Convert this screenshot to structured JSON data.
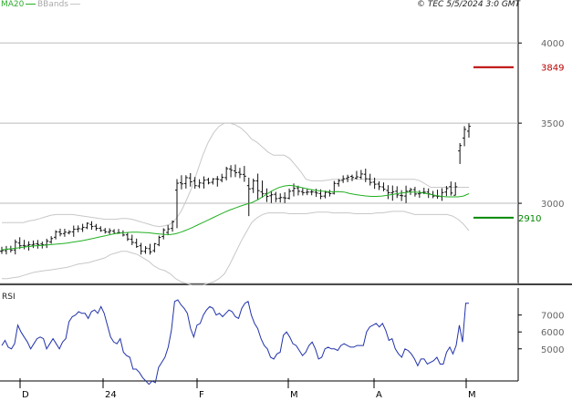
{
  "source": "© TEC 5/5/2024 3:0 GMT",
  "legend": {
    "ma": "MA20",
    "bbands": "BBands"
  },
  "rsi_title": "RSI",
  "colors": {
    "price": "#111111",
    "ma": "#22b022",
    "bands": "#c8c8c8",
    "rsi": "#2233aa",
    "resistance": "#bb0000",
    "support": "#008800",
    "grid": "#bbbbbb"
  },
  "chart_data": [
    {
      "type": "line",
      "panel": "price",
      "ylim": [
        2500,
        4200
      ],
      "yticks": [
        "3000",
        "3500",
        "4000"
      ],
      "grid": true,
      "xticks": [
        "D",
        "24",
        "F",
        "M",
        "A",
        "M"
      ],
      "levels": [
        {
          "value": 3849,
          "label": "3849",
          "color": "#bb0000"
        },
        {
          "value": 2910,
          "label": "2910",
          "color": "#008800"
        }
      ],
      "series": [
        {
          "name": "MA20",
          "values": [
            2710,
            2714,
            2718,
            2722,
            2727,
            2730,
            2734,
            2736,
            2739,
            2742,
            2745,
            2748,
            2752,
            2757,
            2762,
            2768,
            2775,
            2782,
            2790,
            2797,
            2805,
            2811,
            2815,
            2818,
            2820,
            2820,
            2818,
            2816,
            2812,
            2808,
            2806,
            2805,
            2810,
            2820,
            2833,
            2848,
            2864,
            2880,
            2896,
            2912,
            2928,
            2944,
            2958,
            2971,
            2983,
            2994,
            3004,
            3020,
            3040,
            3062,
            3082,
            3098,
            3108,
            3112,
            3108,
            3100,
            3092,
            3085,
            3080,
            3076,
            3073,
            3072,
            3073,
            3070,
            3062,
            3055,
            3050,
            3046,
            3043,
            3043,
            3045,
            3050,
            3056,
            3062,
            3066,
            3070,
            3070,
            3068,
            3062,
            3055,
            3048,
            3043,
            3040,
            3040,
            3040,
            3045,
            3060
          ]
        },
        {
          "name": "BBands upper",
          "values": [
            2880,
            2880,
            2880,
            2880,
            2880,
            2890,
            2895,
            2905,
            2915,
            2925,
            2930,
            2930,
            2930,
            2930,
            2925,
            2920,
            2915,
            2910,
            2905,
            2900,
            2900,
            2900,
            2905,
            2905,
            2900,
            2890,
            2880,
            2870,
            2860,
            2855,
            2860,
            2870,
            2900,
            2950,
            3020,
            3100,
            3200,
            3300,
            3380,
            3440,
            3480,
            3500,
            3500,
            3490,
            3470,
            3440,
            3400,
            3380,
            3350,
            3320,
            3300,
            3300,
            3300,
            3280,
            3240,
            3200,
            3150,
            3140,
            3140,
            3140,
            3145,
            3150,
            3150,
            3150,
            3150,
            3150,
            3150,
            3150,
            3150,
            3150,
            3150,
            3150,
            3150,
            3150,
            3150,
            3150,
            3150,
            3140,
            3120,
            3100,
            3100,
            3100,
            3100,
            3100,
            3100,
            3100,
            3100
          ]
        },
        {
          "name": "BBands lower",
          "values": [
            2530,
            2530,
            2535,
            2540,
            2550,
            2560,
            2570,
            2575,
            2580,
            2585,
            2590,
            2595,
            2600,
            2610,
            2620,
            2625,
            2630,
            2640,
            2650,
            2660,
            2680,
            2690,
            2700,
            2700,
            2690,
            2680,
            2660,
            2640,
            2610,
            2590,
            2580,
            2560,
            2530,
            2510,
            2500,
            2490,
            2490,
            2490,
            2500,
            2510,
            2530,
            2560,
            2620,
            2690,
            2760,
            2820,
            2880,
            2910,
            2930,
            2940,
            2940,
            2940,
            2940,
            2935,
            2935,
            2935,
            2935,
            2940,
            2945,
            2945,
            2945,
            2940,
            2940,
            2940,
            2940,
            2935,
            2935,
            2935,
            2935,
            2940,
            2940,
            2945,
            2950,
            2950,
            2950,
            2940,
            2930,
            2930,
            2930,
            2930,
            2930,
            2930,
            2930,
            2920,
            2900,
            2870,
            2830
          ]
        }
      ],
      "ohlc": [
        [
          2701,
          2729,
          2684,
          2705
        ],
        [
          2704,
          2734,
          2681,
          2713
        ],
        [
          2715,
          2735,
          2693,
          2708
        ],
        [
          2709,
          2774,
          2681,
          2758
        ],
        [
          2752,
          2788,
          2715,
          2735
        ],
        [
          2737,
          2772,
          2713,
          2734
        ],
        [
          2738,
          2763,
          2705,
          2742
        ],
        [
          2740,
          2768,
          2721,
          2745
        ],
        [
          2747,
          2771,
          2717,
          2743
        ],
        [
          2746,
          2761,
          2718,
          2742
        ],
        [
          2741,
          2779,
          2721,
          2764
        ],
        [
          2759,
          2795,
          2748,
          2780
        ],
        [
          2788,
          2832,
          2775,
          2822
        ],
        [
          2821,
          2842,
          2794,
          2809
        ],
        [
          2811,
          2841,
          2791,
          2820
        ],
        [
          2815,
          2832,
          2806,
          2822
        ],
        [
          2822,
          2861,
          2791,
          2838
        ],
        [
          2839,
          2862,
          2819,
          2842
        ],
        [
          2840,
          2872,
          2821,
          2850
        ],
        [
          2848,
          2881,
          2839,
          2875
        ],
        [
          2868,
          2888,
          2835,
          2855
        ],
        [
          2857,
          2871,
          2829,
          2844
        ],
        [
          2844,
          2857,
          2822,
          2830
        ],
        [
          2832,
          2846,
          2811,
          2822
        ],
        [
          2820,
          2844,
          2808,
          2829
        ],
        [
          2826,
          2839,
          2808,
          2812
        ],
        [
          2815,
          2840,
          2809,
          2817
        ],
        [
          2816,
          2831,
          2793,
          2802
        ],
        [
          2803,
          2817,
          2765,
          2777
        ],
        [
          2776,
          2804,
          2739,
          2756
        ],
        [
          2754,
          2780,
          2722,
          2730
        ],
        [
          2735,
          2753,
          2680,
          2701
        ],
        [
          2700,
          2733,
          2685,
          2720
        ],
        [
          2717,
          2747,
          2680,
          2697
        ],
        [
          2705,
          2752,
          2694,
          2748
        ],
        [
          2742,
          2798,
          2732,
          2787
        ],
        [
          2793,
          2844,
          2775,
          2834
        ],
        [
          2818,
          2864,
          2801,
          2840
        ],
        [
          2843,
          2893,
          2823,
          2885
        ],
        [
          3082,
          3151,
          2845,
          3125
        ],
        [
          3128,
          3175,
          3087,
          3121
        ],
        [
          3123,
          3175,
          3092,
          3160
        ],
        [
          3158,
          3188,
          3104,
          3134
        ],
        [
          3141,
          3164,
          3091,
          3110
        ],
        [
          3108,
          3150,
          3094,
          3127
        ],
        [
          3125,
          3168,
          3092,
          3144
        ],
        [
          3147,
          3159,
          3118,
          3127
        ],
        [
          3131,
          3157,
          3117,
          3152
        ],
        [
          3152,
          3170,
          3104,
          3150
        ],
        [
          3145,
          3184,
          3131,
          3162
        ],
        [
          3160,
          3228,
          3143,
          3216
        ],
        [
          3214,
          3238,
          3162,
          3206
        ],
        [
          3202,
          3242,
          3163,
          3191
        ],
        [
          3193,
          3221,
          3157,
          3181
        ],
        [
          3180,
          3233,
          3134,
          3169
        ],
        [
          3110,
          3160,
          2920,
          3090
        ],
        [
          3092,
          3154,
          3064,
          3140
        ],
        [
          3140,
          3185,
          3023,
          3079
        ],
        [
          3071,
          3142,
          3034,
          3059
        ],
        [
          3061,
          3093,
          3008,
          3043
        ],
        [
          3047,
          3078,
          3002,
          3053
        ],
        [
          3056,
          3071,
          3007,
          3029
        ],
        [
          3031,
          3062,
          3005,
          3036
        ],
        [
          3035,
          3069,
          3001,
          3033
        ],
        [
          3032,
          3092,
          3024,
          3075
        ],
        [
          3078,
          3123,
          3043,
          3093
        ],
        [
          3096,
          3110,
          3049,
          3075
        ],
        [
          3073,
          3097,
          3049,
          3066
        ],
        [
          3068,
          3089,
          3051,
          3070
        ],
        [
          3070,
          3087,
          3050,
          3071
        ],
        [
          3069,
          3091,
          3040,
          3064
        ],
        [
          3061,
          3087,
          3026,
          3044
        ],
        [
          3045,
          3079,
          3031,
          3068
        ],
        [
          3068,
          3084,
          3042,
          3060
        ],
        [
          3062,
          3139,
          3055,
          3124
        ],
        [
          3122,
          3151,
          3104,
          3141
        ],
        [
          3143,
          3174,
          3127,
          3153
        ],
        [
          3155,
          3178,
          3132,
          3163
        ],
        [
          3168,
          3179,
          3138,
          3161
        ],
        [
          3157,
          3202,
          3149,
          3165
        ],
        [
          3162,
          3208,
          3150,
          3183
        ],
        [
          3181,
          3216,
          3132,
          3153
        ],
        [
          3152,
          3184,
          3111,
          3130
        ],
        [
          3132,
          3160,
          3090,
          3119
        ],
        [
          3120,
          3137,
          3083,
          3104
        ],
        [
          3102,
          3130,
          3075,
          3088
        ],
        [
          3080,
          3113,
          3026,
          3066
        ],
        [
          3065,
          3111,
          3016,
          3072
        ],
        [
          3075,
          3106,
          3033,
          3052
        ],
        [
          3049,
          3082,
          3014,
          3047
        ],
        [
          3045,
          3110,
          3001,
          3075
        ],
        [
          3077,
          3096,
          3052,
          3085
        ],
        [
          3085,
          3103,
          3042,
          3058
        ],
        [
          3059,
          3081,
          3034,
          3063
        ],
        [
          3068,
          3097,
          3057,
          3069
        ],
        [
          3070,
          3093,
          3033,
          3059
        ],
        [
          3055,
          3077,
          3032,
          3045
        ],
        [
          3045,
          3085,
          3028,
          3043
        ],
        [
          3042,
          3094,
          3015,
          3067
        ],
        [
          3070,
          3108,
          3045,
          3092
        ],
        [
          3104,
          3136,
          3048,
          3064
        ],
        [
          3050,
          3131,
          3049,
          3103
        ],
        [
          3327,
          3376,
          3245,
          3360
        ],
        [
          3407,
          3481,
          3356,
          3461
        ],
        [
          3450,
          3499,
          3410,
          3480
        ]
      ]
    },
    {
      "type": "line",
      "panel": "rsi",
      "ylim": [
        30,
        85
      ],
      "yticks": [
        "5000",
        "6000",
        "7000"
      ],
      "grid": true,
      "series": [
        {
          "name": "RSI",
          "values": [
            51,
            54,
            50,
            49,
            52,
            63,
            59,
            56,
            53,
            49,
            52,
            55,
            56,
            55,
            49,
            52,
            55,
            52,
            49,
            53,
            55,
            65,
            68,
            69,
            71,
            70,
            70,
            67,
            71,
            72,
            70,
            74,
            70,
            63,
            56,
            53,
            52,
            55,
            47,
            45,
            44,
            37,
            37,
            35,
            32,
            30,
            28,
            30,
            29,
            38,
            41,
            44,
            50,
            60,
            77,
            78,
            75,
            73,
            70,
            61,
            56,
            63,
            64,
            69,
            72,
            74,
            73,
            69,
            70,
            68,
            70,
            72,
            71,
            68,
            67,
            73,
            76,
            77,
            69,
            64,
            61,
            55,
            51,
            49,
            44,
            43,
            46,
            47,
            57,
            59,
            56,
            52,
            51,
            48,
            45,
            47,
            51,
            53,
            49,
            43,
            44,
            49,
            50,
            49,
            49,
            48,
            51,
            52,
            51,
            50,
            50,
            51,
            51,
            51,
            59,
            62,
            63,
            64,
            62,
            64,
            60,
            54,
            55,
            49,
            46,
            44,
            49,
            48,
            46,
            43,
            39,
            43,
            43,
            40,
            41,
            42,
            44,
            40,
            40,
            47,
            50,
            46,
            51,
            63,
            53,
            76,
            76
          ]
        }
      ]
    }
  ]
}
